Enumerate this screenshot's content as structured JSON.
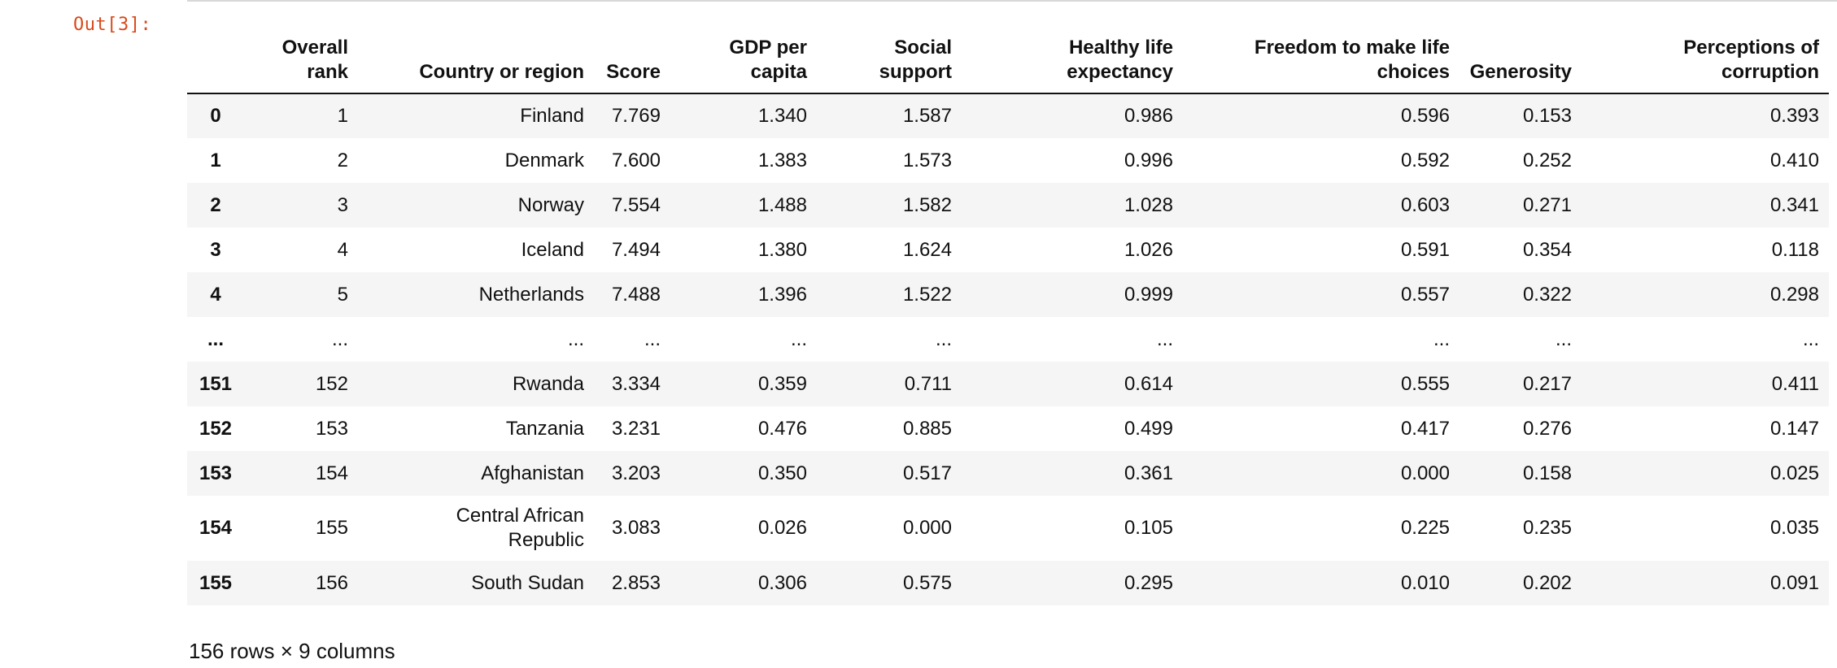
{
  "cell": {
    "prompt": "Out[3]:",
    "footer": "156 rows × 9 columns"
  },
  "table": {
    "columns": [
      [
        "Overall",
        "rank"
      ],
      [
        "Country or region"
      ],
      [
        "Score"
      ],
      [
        "GDP per",
        "capita"
      ],
      [
        "Social",
        "support"
      ],
      [
        "Healthy life",
        "expectancy"
      ],
      [
        "Freedom to make life",
        "choices"
      ],
      [
        "Generosity"
      ],
      [
        "Perceptions of",
        "corruption"
      ]
    ],
    "rows": [
      {
        "index": "0",
        "cells": [
          [
            "1"
          ],
          [
            "Finland"
          ],
          [
            "7.769"
          ],
          [
            "1.340"
          ],
          [
            "1.587"
          ],
          [
            "0.986"
          ],
          [
            "0.596"
          ],
          [
            "0.153"
          ],
          [
            "0.393"
          ]
        ]
      },
      {
        "index": "1",
        "cells": [
          [
            "2"
          ],
          [
            "Denmark"
          ],
          [
            "7.600"
          ],
          [
            "1.383"
          ],
          [
            "1.573"
          ],
          [
            "0.996"
          ],
          [
            "0.592"
          ],
          [
            "0.252"
          ],
          [
            "0.410"
          ]
        ]
      },
      {
        "index": "2",
        "cells": [
          [
            "3"
          ],
          [
            "Norway"
          ],
          [
            "7.554"
          ],
          [
            "1.488"
          ],
          [
            "1.582"
          ],
          [
            "1.028"
          ],
          [
            "0.603"
          ],
          [
            "0.271"
          ],
          [
            "0.341"
          ]
        ]
      },
      {
        "index": "3",
        "cells": [
          [
            "4"
          ],
          [
            "Iceland"
          ],
          [
            "7.494"
          ],
          [
            "1.380"
          ],
          [
            "1.624"
          ],
          [
            "1.026"
          ],
          [
            "0.591"
          ],
          [
            "0.354"
          ],
          [
            "0.118"
          ]
        ]
      },
      {
        "index": "4",
        "cells": [
          [
            "5"
          ],
          [
            "Netherlands"
          ],
          [
            "7.488"
          ],
          [
            "1.396"
          ],
          [
            "1.522"
          ],
          [
            "0.999"
          ],
          [
            "0.557"
          ],
          [
            "0.322"
          ],
          [
            "0.298"
          ]
        ]
      },
      {
        "index": "...",
        "cells": [
          [
            "..."
          ],
          [
            "..."
          ],
          [
            "..."
          ],
          [
            "..."
          ],
          [
            "..."
          ],
          [
            "..."
          ],
          [
            "..."
          ],
          [
            "..."
          ],
          [
            "..."
          ]
        ]
      },
      {
        "index": "151",
        "cells": [
          [
            "152"
          ],
          [
            "Rwanda"
          ],
          [
            "3.334"
          ],
          [
            "0.359"
          ],
          [
            "0.711"
          ],
          [
            "0.614"
          ],
          [
            "0.555"
          ],
          [
            "0.217"
          ],
          [
            "0.411"
          ]
        ]
      },
      {
        "index": "152",
        "cells": [
          [
            "153"
          ],
          [
            "Tanzania"
          ],
          [
            "3.231"
          ],
          [
            "0.476"
          ],
          [
            "0.885"
          ],
          [
            "0.499"
          ],
          [
            "0.417"
          ],
          [
            "0.276"
          ],
          [
            "0.147"
          ]
        ]
      },
      {
        "index": "153",
        "cells": [
          [
            "154"
          ],
          [
            "Afghanistan"
          ],
          [
            "3.203"
          ],
          [
            "0.350"
          ],
          [
            "0.517"
          ],
          [
            "0.361"
          ],
          [
            "0.000"
          ],
          [
            "0.158"
          ],
          [
            "0.025"
          ]
        ]
      },
      {
        "index": "154",
        "cells": [
          [
            "155"
          ],
          [
            "Central African",
            "Republic"
          ],
          [
            "3.083"
          ],
          [
            "0.026"
          ],
          [
            "0.000"
          ],
          [
            "0.105"
          ],
          [
            "0.225"
          ],
          [
            "0.235"
          ],
          [
            "0.035"
          ]
        ]
      },
      {
        "index": "155",
        "cells": [
          [
            "156"
          ],
          [
            "South Sudan"
          ],
          [
            "2.853"
          ],
          [
            "0.306"
          ],
          [
            "0.575"
          ],
          [
            "0.295"
          ],
          [
            "0.010"
          ],
          [
            "0.202"
          ],
          [
            "0.091"
          ]
        ]
      }
    ]
  }
}
